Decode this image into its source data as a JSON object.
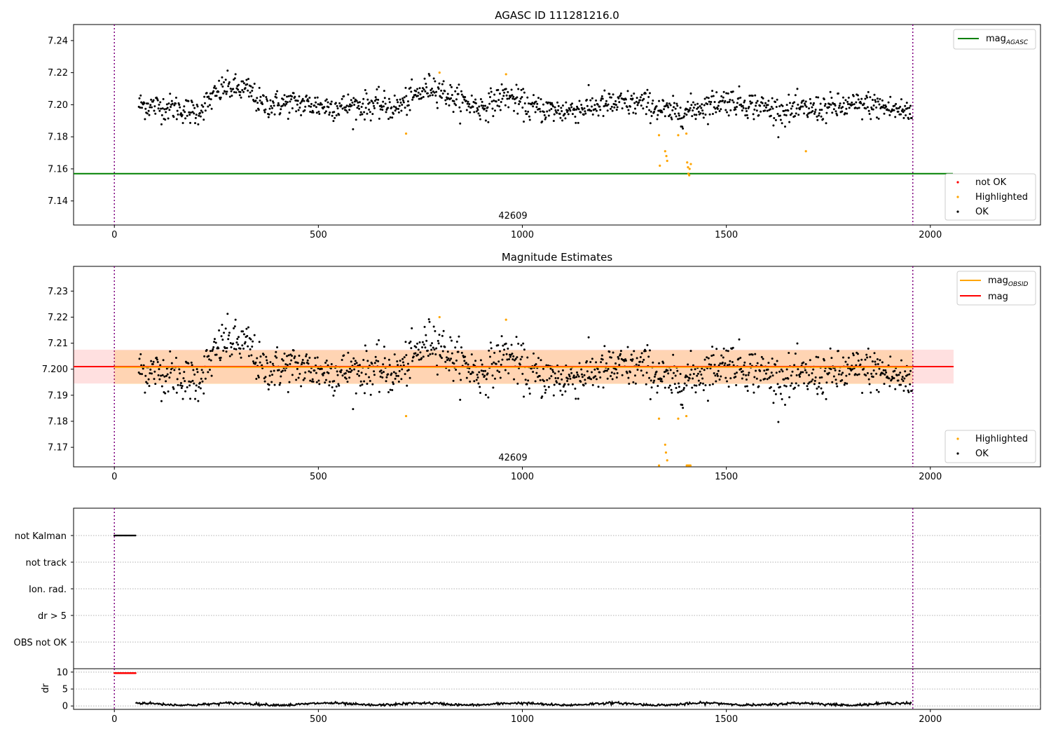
{
  "chart_data": [
    {
      "type": "scatter",
      "title": "AGASC ID 111281216.0",
      "annotation": "42609",
      "xlim": [
        -100,
        2270
      ],
      "ylim": [
        7.125,
        7.25
      ],
      "xticks": [
        0,
        500,
        1000,
        1500,
        2000
      ],
      "xtick_labels": [
        "0",
        "500",
        "1000",
        "1500",
        "2000"
      ],
      "yticks": [
        7.14,
        7.16,
        7.18,
        7.2,
        7.22,
        7.24
      ],
      "ytick_labels": [
        "7.14",
        "7.16",
        "7.18",
        "7.20",
        "7.22",
        "7.24"
      ],
      "vlines": [
        0,
        1957
      ],
      "mag_agasc": 7.157,
      "legend_lines": [
        {
          "label": "mag",
          "sub": "AGASC",
          "color": "#008000"
        }
      ],
      "legend_points": [
        {
          "label": "not OK",
          "color": "#ff0000"
        },
        {
          "label": "Highlighted",
          "color": "#ffa500"
        },
        {
          "label": "OK",
          "color": "#000000"
        }
      ],
      "ok_series": {
        "x_start": 60,
        "x_end": 1955,
        "step": 1.5,
        "segments": [
          [
            60,
            7.2
          ],
          [
            150,
            7.198
          ],
          [
            200,
            7.195
          ],
          [
            270,
            7.211
          ],
          [
            330,
            7.209
          ],
          [
            360,
            7.2
          ],
          [
            440,
            7.201
          ],
          [
            520,
            7.199
          ],
          [
            560,
            7.199
          ],
          [
            640,
            7.2
          ],
          [
            690,
            7.198
          ],
          [
            780,
            7.212
          ],
          [
            830,
            7.204
          ],
          [
            900,
            7.198
          ],
          [
            960,
            7.206
          ],
          [
            1020,
            7.198
          ],
          [
            1100,
            7.196
          ],
          [
            1200,
            7.2
          ],
          [
            1300,
            7.201
          ],
          [
            1360,
            7.195
          ],
          [
            1400,
            7.196
          ],
          [
            1500,
            7.203
          ],
          [
            1560,
            7.2
          ],
          [
            1640,
            7.196
          ],
          [
            1750,
            7.198
          ],
          [
            1850,
            7.2
          ],
          [
            1955,
            7.195
          ]
        ],
        "noise": 0.0042
      },
      "highlighted": [
        [
          715,
          7.182
        ],
        [
          797,
          7.22
        ],
        [
          960,
          7.219
        ],
        [
          1335,
          7.181
        ],
        [
          1337,
          7.162
        ],
        [
          1350,
          7.171
        ],
        [
          1353,
          7.168
        ],
        [
          1355,
          7.165
        ],
        [
          1382,
          7.181
        ],
        [
          1402,
          7.182
        ],
        [
          1404,
          7.164
        ],
        [
          1406,
          7.161
        ],
        [
          1407,
          7.157
        ],
        [
          1409,
          7.156
        ],
        [
          1410,
          7.16
        ],
        [
          1413,
          7.163
        ],
        [
          1695,
          7.171
        ]
      ]
    },
    {
      "type": "scatter",
      "title": "Magnitude Estimates",
      "annotation": "42609",
      "xlim": [
        -100,
        2270
      ],
      "ylim": [
        7.1625,
        7.2395
      ],
      "xticks": [
        0,
        500,
        1000,
        1500,
        2000
      ],
      "xtick_labels": [
        "0",
        "500",
        "1000",
        "1500",
        "2000"
      ],
      "yticks": [
        7.17,
        7.18,
        7.19,
        7.2,
        7.21,
        7.22,
        7.23
      ],
      "ytick_labels": [
        "7.17",
        "7.18",
        "7.19",
        "7.200",
        "7.21",
        "7.22",
        "7.23"
      ],
      "vlines": [
        0,
        1957
      ],
      "mag": 7.201,
      "mag_obsid": 7.2008,
      "band_mag": [
        7.1945,
        7.2075
      ],
      "band_obsid": [
        7.1943,
        7.2073
      ],
      "band_x": [
        -100,
        2057
      ],
      "legend_lines": [
        {
          "label": "mag",
          "sub": "OBSID",
          "color": "#ffa500"
        },
        {
          "label": "mag",
          "sub": "",
          "color": "#ff0000"
        }
      ],
      "legend_points": [
        {
          "label": "Highlighted",
          "color": "#ffa500"
        },
        {
          "label": "OK",
          "color": "#000000"
        }
      ],
      "highlighted": [
        [
          715,
          7.182
        ],
        [
          797,
          7.22
        ],
        [
          960,
          7.219
        ],
        [
          1335,
          7.181
        ],
        [
          1350,
          7.171
        ],
        [
          1352,
          7.168
        ],
        [
          1355,
          7.165
        ],
        [
          1382,
          7.181
        ],
        [
          1402,
          7.182
        ],
        [
          1335,
          7.163
        ],
        [
          1403,
          7.163
        ],
        [
          1406,
          7.163
        ],
        [
          1409,
          7.163
        ],
        [
          1412,
          7.163
        ]
      ]
    },
    {
      "type": "scatter",
      "flag_labels": [
        "not Kalman",
        "not track",
        "Ion. rad.",
        "dr > 5",
        "OBS not OK"
      ],
      "flag_not_kalman_range": [
        0,
        52
      ],
      "xlim": [
        -100,
        2270
      ],
      "xticks": [
        0,
        500,
        1000,
        1500,
        2000
      ],
      "xtick_labels": [
        "0",
        "500",
        "1000",
        "1500",
        "2000"
      ],
      "vlines": [
        0,
        1957
      ]
    },
    {
      "type": "line",
      "ylabel": "dr",
      "ylim": [
        -1,
        11
      ],
      "yticks": [
        0,
        5,
        10
      ],
      "ytick_labels": [
        "0",
        "5",
        "10"
      ],
      "xlim": [
        -100,
        2270
      ],
      "xticks": [
        0,
        500,
        1000,
        1500,
        2000
      ],
      "xtick_labels": [
        "0",
        "500",
        "1000",
        "1500",
        "2000"
      ],
      "vlines": [
        0,
        1957
      ],
      "red_range": [
        0,
        52
      ],
      "red_value": 9.7,
      "dr_range": [
        52,
        1955
      ],
      "dr_mean": 0.55
    }
  ]
}
